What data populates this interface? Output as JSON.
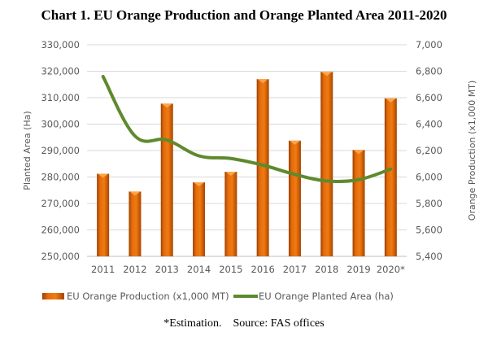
{
  "chart_data": {
    "type": "bar+line",
    "title": "Chart 1. EU Orange Production and Orange Planted Area 2011-2020",
    "footnote": "*Estimation.    Source: FAS offices",
    "categories": [
      "2011",
      "2012",
      "2013",
      "2014",
      "2015",
      "2016",
      "2017",
      "2018",
      "2019",
      "2020*"
    ],
    "left_axis": {
      "label": "Planted Area (Ha)",
      "range": [
        250000,
        330000
      ],
      "ticks": [
        "250,000",
        "260,000",
        "270,000",
        "280,000",
        "290,000",
        "300,000",
        "310,000",
        "320,000",
        "330,000"
      ],
      "tick_values": [
        250000,
        260000,
        270000,
        280000,
        290000,
        300000,
        310000,
        320000,
        330000
      ]
    },
    "right_axis": {
      "label": "Orange Production (x1,000 MT)",
      "range": [
        5400,
        7000
      ],
      "ticks": [
        "5,400",
        "5,600",
        "5,800",
        "6,000",
        "6,200",
        "6,400",
        "6,600",
        "6,800",
        "7,000"
      ],
      "tick_values": [
        5400,
        5600,
        5800,
        6000,
        6200,
        6400,
        6600,
        6800,
        7000
      ]
    },
    "series": [
      {
        "name": "EU Orange Production (x1,000 MT)",
        "type": "bar",
        "axis": "right",
        "color": "#E36C0A",
        "values": [
          6025,
          5890,
          6555,
          5960,
          6040,
          6740,
          6275,
          6795,
          6205,
          6595
        ]
      },
      {
        "name": "EU Orange Planted Area (ha)",
        "type": "line",
        "axis": "left",
        "color": "#5E8A2E",
        "values": [
          318000,
          295500,
          294000,
          288000,
          287000,
          284500,
          281000,
          278500,
          279000,
          283000
        ]
      }
    ],
    "grid": true,
    "legend": "bottom"
  }
}
